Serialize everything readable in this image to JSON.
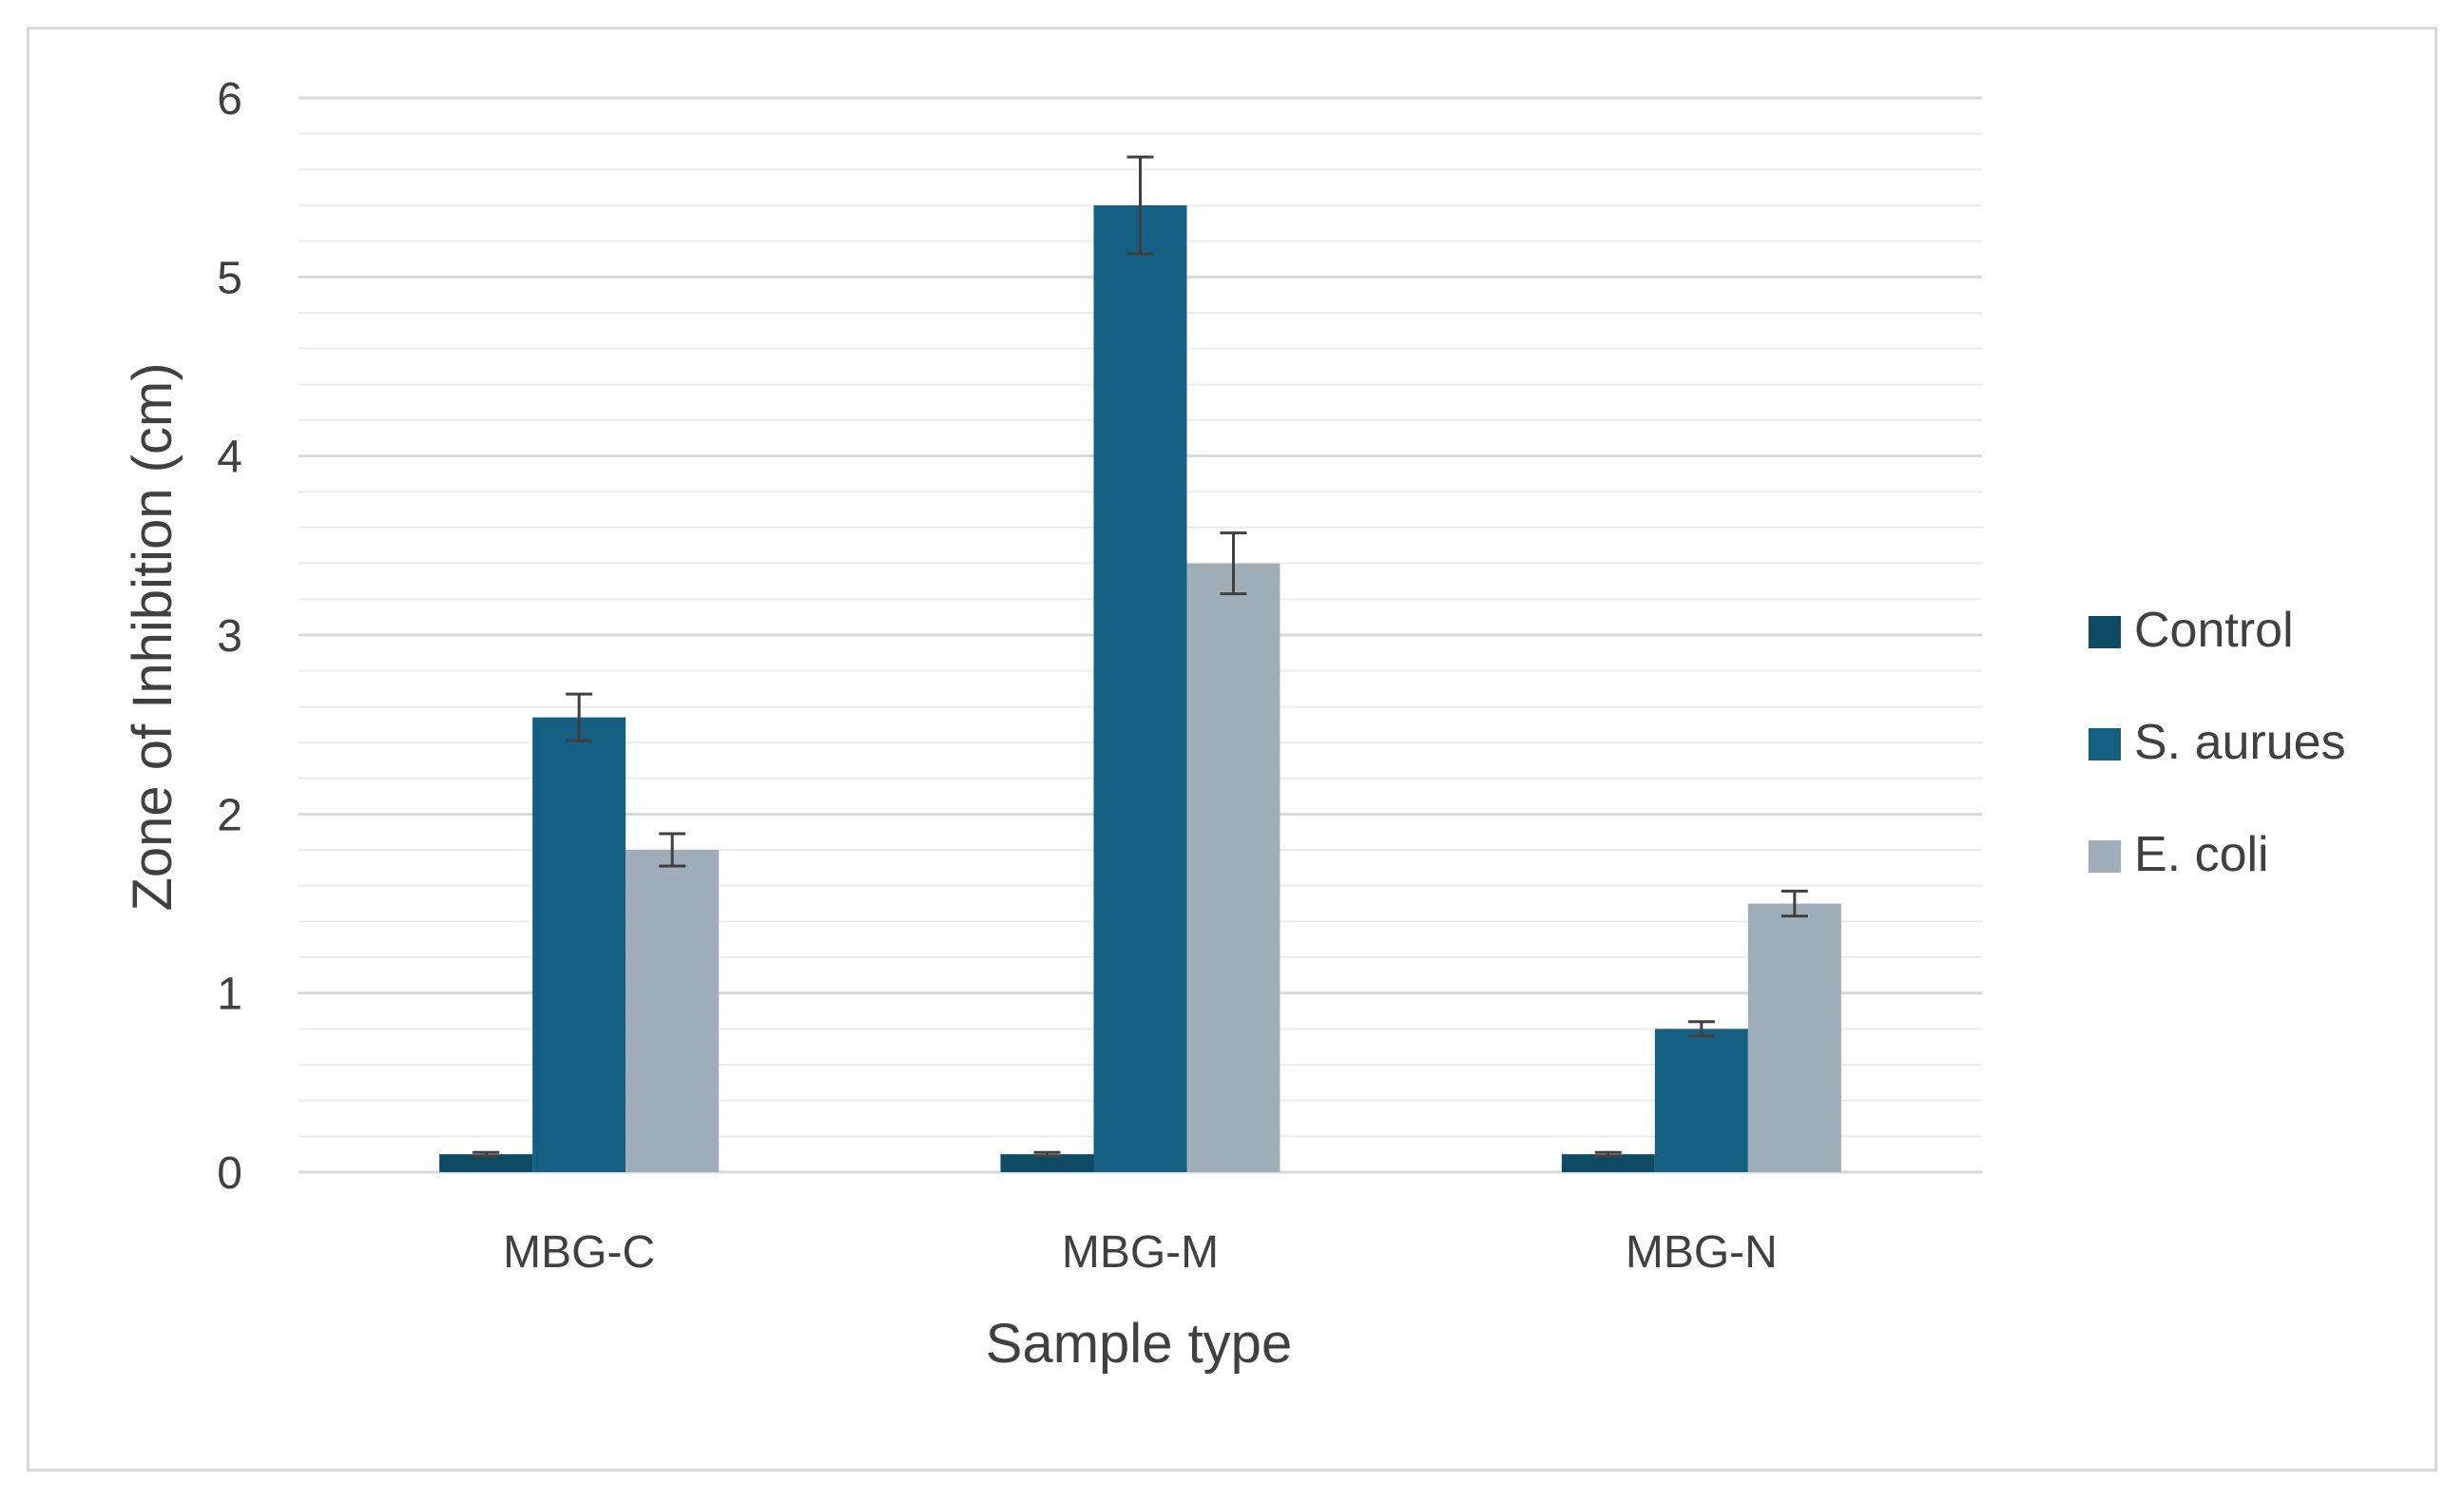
{
  "chart_data": {
    "type": "bar",
    "title": "",
    "xlabel": "Sample type",
    "ylabel": "Zone of Inhibition (cm)",
    "ylim": [
      0,
      6
    ],
    "yticks": [
      "0",
      "1",
      "2",
      "3",
      "4",
      "5",
      "6"
    ],
    "minor_gridlines": true,
    "legend_position": "right",
    "categories": [
      "MBG-C",
      "MBG-M",
      "MBG-N"
    ],
    "series": [
      {
        "name": "Control",
        "color": "#0e4a63",
        "values": [
          0.1,
          0.1,
          0.1
        ],
        "errors": [
          0.01,
          0.01,
          0.01
        ]
      },
      {
        "name": "S. aurues",
        "color": "#155f82",
        "values": [
          2.54,
          5.4,
          0.8
        ],
        "errors": [
          0.13,
          0.27,
          0.04
        ]
      },
      {
        "name": "E. coli",
        "color": "#a0aeb9",
        "values": [
          1.8,
          3.4,
          1.5
        ],
        "errors": [
          0.09,
          0.17,
          0.07
        ]
      }
    ],
    "error_bar_color": "#404040",
    "gridline_color": "#d9d9d9"
  }
}
